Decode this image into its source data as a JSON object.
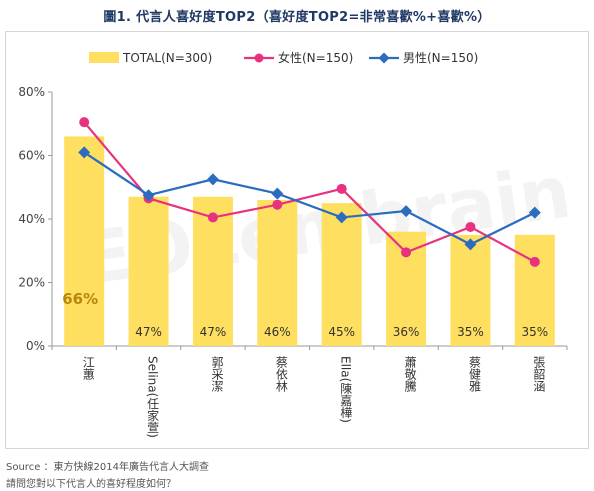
{
  "title": "圖1. 代言人喜好度TOP2（喜好度TOP2=非常喜歡%+喜歡%）",
  "source": "Source ：東方快線2014年廣告代言人大調查",
  "question": "請問您對以下代言人的喜好程度如何？",
  "watermark": "EOLembrain",
  "colors": {
    "total": "#ffdf5f",
    "female": "#e8327f",
    "male": "#2b6cbf",
    "highlight_label": "#b8860b"
  },
  "chart_data": {
    "type": "bar",
    "categories": [
      "江蕙",
      "Selina(任家萱)",
      "郭采潔",
      "蔡依林",
      "Ella(陳嘉樺)",
      "蕭敬騰",
      "蔡健雅",
      "張韶涵"
    ],
    "ylim": [
      0,
      80
    ],
    "yticks": [
      0,
      20,
      40,
      60,
      80
    ],
    "ytick_labels": [
      "0%",
      "20%",
      "40%",
      "60%",
      "80%"
    ],
    "grid": false,
    "legend_position": "top",
    "series": [
      {
        "name": "TOTAL(N=300)",
        "type": "bar",
        "values": [
          66,
          47,
          47,
          46,
          45,
          36,
          35,
          35
        ],
        "labels": [
          "66%",
          "47%",
          "47%",
          "46%",
          "45%",
          "36%",
          "35%",
          "35%"
        ]
      },
      {
        "name": "女性(N=150)",
        "type": "line",
        "values": [
          70.5,
          46.5,
          40.5,
          44.5,
          49.5,
          29.5,
          37.5,
          26.5
        ]
      },
      {
        "name": "男性(N=150)",
        "type": "line",
        "values": [
          61,
          47.5,
          52.5,
          48,
          40.5,
          42.5,
          32,
          42
        ]
      }
    ]
  }
}
